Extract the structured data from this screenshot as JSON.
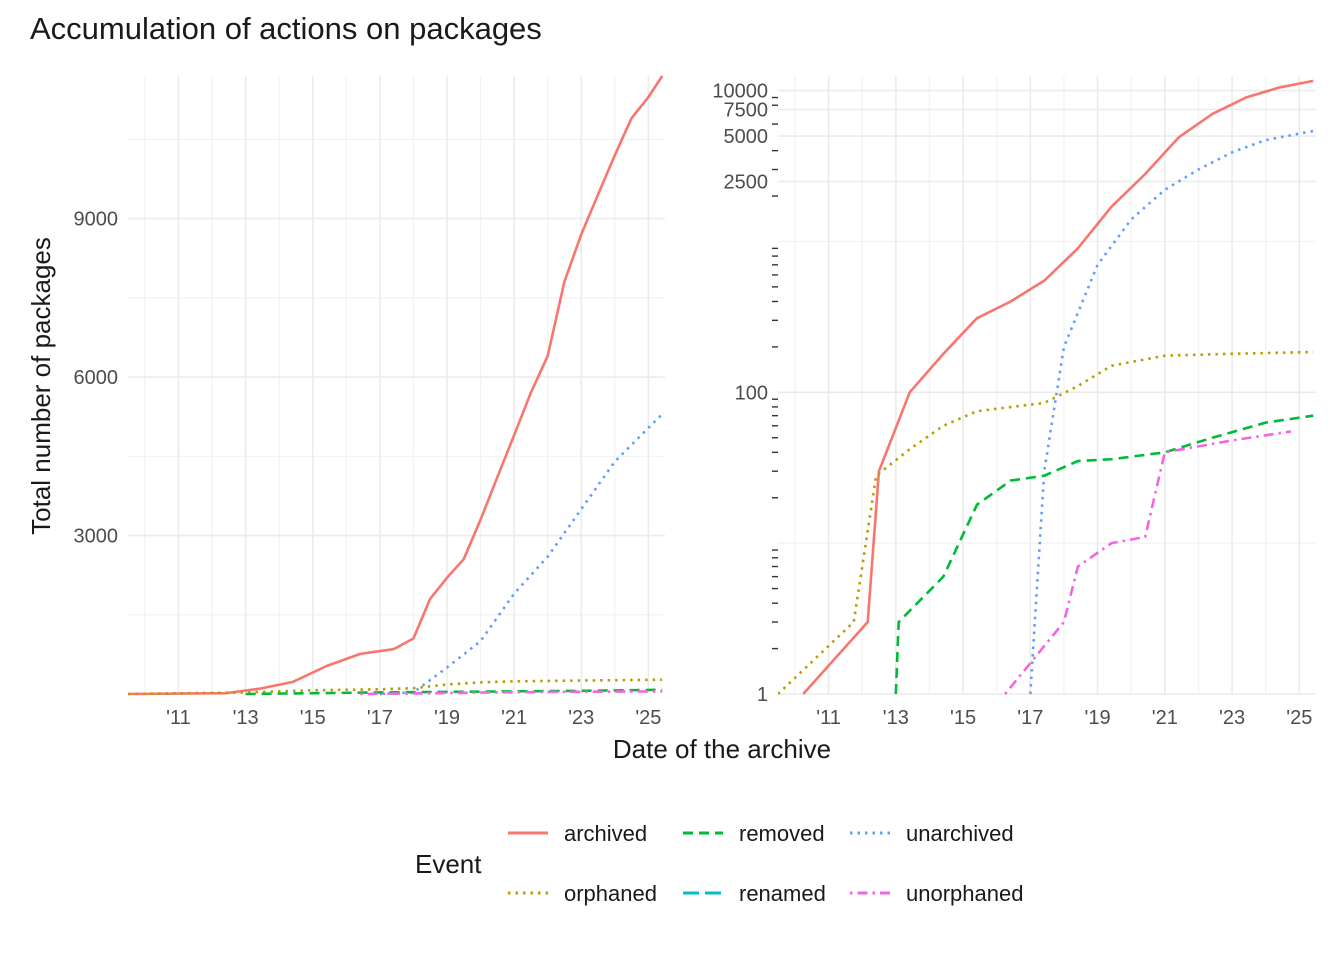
{
  "title": "Accumulation of actions on packages",
  "xlabel": "Date of the archive",
  "ylabel": "Total number of packages",
  "legend": {
    "title": "Event",
    "position": "bottom",
    "entries": [
      {
        "label": "archived",
        "color": "#F8766D",
        "dash": "solid"
      },
      {
        "label": "removed",
        "color": "#00BA38",
        "dash": "dashed"
      },
      {
        "label": "unarchived",
        "color": "#619CFF",
        "dash": "dotted"
      },
      {
        "label": "orphaned",
        "color": "#B79F00",
        "dash": "dotted"
      },
      {
        "label": "renamed",
        "color": "#00BFC4",
        "dash": "longdash"
      },
      {
        "label": "unorphaned",
        "color": "#F564E3",
        "dash": "dotdash"
      }
    ]
  },
  "chart_data": [
    {
      "type": "line",
      "panel": "linear",
      "xlim": [
        "2009-07-01",
        "2025-07-01"
      ],
      "ylim": [
        0,
        11700
      ],
      "x_ticks": [
        "'11",
        "'13",
        "'15",
        "'17",
        "'19",
        "'21",
        "'23",
        "'25"
      ],
      "y_ticks": [
        3000,
        6000,
        9000
      ],
      "grid": true,
      "series": [
        {
          "name": "archived",
          "points": [
            [
              "2009-07-01",
              0
            ],
            [
              "2012-06-01",
              15
            ],
            [
              "2013-06-01",
              100
            ],
            [
              "2014-06-01",
              230
            ],
            [
              "2015-06-01",
              530
            ],
            [
              "2016-06-01",
              760
            ],
            [
              "2017-06-01",
              850
            ],
            [
              "2018-01-01",
              1050
            ],
            [
              "2018-07-01",
              1800
            ],
            [
              "2019-01-01",
              2200
            ],
            [
              "2019-07-01",
              2550
            ],
            [
              "2020-01-01",
              3300
            ],
            [
              "2020-07-01",
              4100
            ],
            [
              "2021-01-01",
              4900
            ],
            [
              "2021-07-01",
              5700
            ],
            [
              "2022-01-01",
              6400
            ],
            [
              "2022-07-01",
              7800
            ],
            [
              "2023-01-01",
              8700
            ],
            [
              "2023-07-01",
              9450
            ],
            [
              "2024-01-01",
              10200
            ],
            [
              "2024-07-01",
              10900
            ],
            [
              "2025-01-01",
              11300
            ],
            [
              "2025-06-01",
              11700
            ]
          ]
        },
        {
          "name": "unarchived",
          "points": [
            [
              "2017-01-01",
              0
            ],
            [
              "2018-01-01",
              30
            ],
            [
              "2019-01-01",
              500
            ],
            [
              "2020-01-01",
              1000
            ],
            [
              "2021-01-01",
              1900
            ],
            [
              "2022-01-01",
              2600
            ],
            [
              "2023-01-01",
              3500
            ],
            [
              "2024-01-01",
              4400
            ],
            [
              "2025-06-01",
              5300
            ]
          ]
        },
        {
          "name": "orphaned",
          "points": [
            [
              "2009-07-01",
              0
            ],
            [
              "2013-01-01",
              30
            ],
            [
              "2015-01-01",
              70
            ],
            [
              "2017-01-01",
              90
            ],
            [
              "2018-01-01",
              110
            ],
            [
              "2019-01-01",
              180
            ],
            [
              "2020-01-01",
              220
            ],
            [
              "2021-01-01",
              240
            ],
            [
              "2023-01-01",
              255
            ],
            [
              "2025-06-01",
              270
            ]
          ]
        },
        {
          "name": "removed",
          "points": [
            [
              "2013-01-01",
              0
            ],
            [
              "2015-01-01",
              15
            ],
            [
              "2017-01-01",
              30
            ],
            [
              "2019-01-01",
              40
            ],
            [
              "2021-01-01",
              50
            ],
            [
              "2023-01-01",
              60
            ],
            [
              "2025-06-01",
              80
            ]
          ]
        },
        {
          "name": "unorphaned",
          "points": [
            [
              "2016-06-01",
              0
            ],
            [
              "2018-01-01",
              10
            ],
            [
              "2020-06-01",
              30
            ],
            [
              "2022-06-01",
              40
            ],
            [
              "2025-06-01",
              50
            ]
          ]
        }
      ]
    },
    {
      "type": "line",
      "panel": "log",
      "scale": "log10",
      "xlim": [
        "2009-07-01",
        "2025-07-01"
      ],
      "ylim": [
        1,
        12500
      ],
      "x_ticks": [
        "'11",
        "'13",
        "'15",
        "'17",
        "'19",
        "'21",
        "'23",
        "'25"
      ],
      "y_ticks": [
        1,
        100,
        2500,
        5000,
        7500,
        10000
      ],
      "grid": true,
      "series": [
        {
          "name": "archived",
          "points": [
            [
              "2010-04-01",
              1
            ],
            [
              "2012-03-01",
              3
            ],
            [
              "2012-07-01",
              30
            ],
            [
              "2013-06-01",
              100
            ],
            [
              "2014-06-01",
              180
            ],
            [
              "2015-06-01",
              310
            ],
            [
              "2016-06-01",
              400
            ],
            [
              "2017-06-01",
              550
            ],
            [
              "2018-06-01",
              900
            ],
            [
              "2019-06-01",
              1700
            ],
            [
              "2020-06-01",
              2800
            ],
            [
              "2021-06-01",
              4900
            ],
            [
              "2022-06-01",
              7000
            ],
            [
              "2023-06-01",
              9000
            ],
            [
              "2024-06-01",
              10500
            ],
            [
              "2025-06-01",
              11600
            ]
          ]
        },
        {
          "name": "unarchived",
          "points": [
            [
              "2017-01-01",
              1
            ],
            [
              "2017-06-01",
              30
            ],
            [
              "2018-01-01",
              200
            ],
            [
              "2019-01-01",
              700
            ],
            [
              "2020-01-01",
              1400
            ],
            [
              "2021-01-01",
              2200
            ],
            [
              "2022-01-01",
              3000
            ],
            [
              "2023-01-01",
              3900
            ],
            [
              "2024-01-01",
              4700
            ],
            [
              "2025-06-01",
              5400
            ]
          ]
        },
        {
          "name": "orphaned",
          "points": [
            [
              "2009-07-01",
              1
            ],
            [
              "2011-10-01",
              3
            ],
            [
              "2012-06-01",
              28
            ],
            [
              "2013-06-01",
              42
            ],
            [
              "2014-06-01",
              60
            ],
            [
              "2015-06-01",
              75
            ],
            [
              "2017-06-01",
              85
            ],
            [
              "2018-06-01",
              110
            ],
            [
              "2019-06-01",
              150
            ],
            [
              "2021-01-01",
              175
            ],
            [
              "2023-01-01",
              180
            ],
            [
              "2025-06-01",
              185
            ]
          ]
        },
        {
          "name": "removed",
          "points": [
            [
              "2013-01-01",
              1
            ],
            [
              "2013-02-01",
              3
            ],
            [
              "2014-06-01",
              6
            ],
            [
              "2015-06-01",
              18
            ],
            [
              "2016-06-01",
              26
            ],
            [
              "2017-06-01",
              28
            ],
            [
              "2018-06-01",
              35
            ],
            [
              "2019-06-01",
              36
            ],
            [
              "2021-01-01",
              40
            ],
            [
              "2022-06-01",
              50
            ],
            [
              "2024-01-01",
              63
            ],
            [
              "2025-06-01",
              70
            ]
          ]
        },
        {
          "name": "unorphaned",
          "points": [
            [
              "2016-04-01",
              1
            ],
            [
              "2018-01-01",
              3
            ],
            [
              "2018-06-01",
              7
            ],
            [
              "2019-06-01",
              10
            ],
            [
              "2020-06-01",
              11
            ],
            [
              "2021-01-01",
              40
            ],
            [
              "2023-01-01",
              48
            ],
            [
              "2024-10-01",
              55
            ]
          ]
        }
      ]
    }
  ]
}
